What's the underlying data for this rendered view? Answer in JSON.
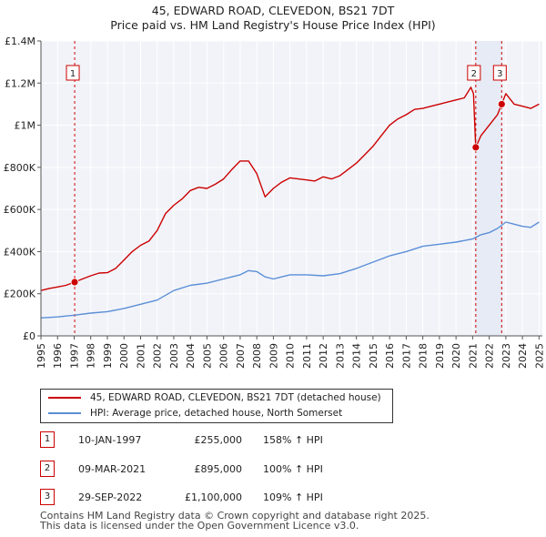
{
  "title": "45, EDWARD ROAD, CLEVEDON, BS21 7DT",
  "subtitle": "Price paid vs. HM Land Registry's House Price Index (HPI)",
  "colors": {
    "property": "#cc0000",
    "hpi": "#5b8fd6",
    "marker_line": "#cc0000",
    "grid": "#e6e6e6"
  },
  "chart_data": {
    "type": "line",
    "title": "45, EDWARD ROAD, CLEVEDON, BS21 7DT",
    "subtitle": "Price paid vs. HM Land Registry's House Price Index (HPI)",
    "xlim": [
      1995.0,
      2025.2
    ],
    "ylim": [
      0,
      1400000
    ],
    "y_ticks": [
      0,
      200000,
      400000,
      600000,
      800000,
      1000000,
      1200000,
      1400000
    ],
    "y_tick_labels": [
      "£0",
      "£200K",
      "£400K",
      "£600K",
      "£800K",
      "£1M",
      "£1.2M",
      "£1.4M"
    ],
    "x_ticks": [
      1995,
      1996,
      1997,
      1998,
      1999,
      2000,
      2001,
      2002,
      2003,
      2004,
      2005,
      2006,
      2007,
      2008,
      2009,
      2010,
      2011,
      2012,
      2013,
      2014,
      2015,
      2016,
      2017,
      2018,
      2019,
      2020,
      2021,
      2022,
      2023,
      2024,
      2025
    ],
    "x_tick_labels": [
      "1995",
      "1996",
      "1997",
      "1998",
      "1999",
      "2000",
      "2001",
      "2002",
      "2003",
      "2004",
      "2005",
      "2006",
      "2007",
      "2008",
      "2009",
      "2010",
      "2011",
      "2012",
      "2013",
      "2014",
      "2015",
      "2016",
      "2017",
      "2018",
      "2019",
      "2020",
      "2021",
      "2022",
      "2023",
      "2024",
      "2025"
    ],
    "grid": true,
    "series": [
      {
        "name": "45, EDWARD ROAD, CLEVEDON, BS21 7DT (detached house)",
        "color": "#cc0000",
        "x": [
          1995.0,
          1995.5,
          1996.0,
          1996.5,
          1997.03,
          1997.5,
          1998.0,
          1998.5,
          1999.0,
          1999.5,
          2000.0,
          2000.5,
          2001.0,
          2001.5,
          2002.0,
          2002.5,
          2003.0,
          2003.5,
          2004.0,
          2004.5,
          2005.0,
          2005.5,
          2006.0,
          2006.5,
          2007.0,
          2007.5,
          2008.0,
          2008.5,
          2009.0,
          2009.5,
          2010.0,
          2010.5,
          2011.0,
          2011.5,
          2012.0,
          2012.5,
          2013.0,
          2013.5,
          2014.0,
          2014.5,
          2015.0,
          2015.5,
          2016.0,
          2016.5,
          2017.0,
          2017.5,
          2018.0,
          2018.5,
          2019.0,
          2019.5,
          2020.0,
          2020.5,
          2020.9,
          2021.05,
          2021.19,
          2021.5,
          2022.0,
          2022.5,
          2022.75,
          2023.0,
          2023.5,
          2024.0,
          2024.5,
          2025.0
        ],
        "values": [
          215000,
          225000,
          232000,
          240000,
          255000,
          270000,
          285000,
          298000,
          300000,
          320000,
          360000,
          400000,
          430000,
          450000,
          500000,
          580000,
          620000,
          650000,
          690000,
          705000,
          700000,
          720000,
          745000,
          790000,
          830000,
          830000,
          770000,
          660000,
          700000,
          730000,
          750000,
          745000,
          740000,
          735000,
          755000,
          745000,
          760000,
          790000,
          820000,
          860000,
          900000,
          950000,
          1000000,
          1030000,
          1050000,
          1075000,
          1080000,
          1090000,
          1100000,
          1110000,
          1120000,
          1130000,
          1180000,
          1150000,
          895000,
          950000,
          1000000,
          1050000,
          1100000,
          1150000,
          1100000,
          1090000,
          1080000,
          1100000
        ]
      },
      {
        "name": "HPI: Average price, detached house, North Somerset",
        "color": "#5b8fd6",
        "x": [
          1995.0,
          1996.0,
          1997.0,
          1998.0,
          1999.0,
          2000.0,
          2001.0,
          2002.0,
          2003.0,
          2004.0,
          2005.0,
          2006.0,
          2007.0,
          2007.5,
          2008.0,
          2008.5,
          2009.0,
          2009.5,
          2010.0,
          2011.0,
          2012.0,
          2013.0,
          2014.0,
          2015.0,
          2016.0,
          2017.0,
          2018.0,
          2019.0,
          2020.0,
          2021.0,
          2021.5,
          2022.0,
          2022.5,
          2023.0,
          2023.5,
          2024.0,
          2024.5,
          2025.0
        ],
        "values": [
          85000,
          90000,
          98000,
          108000,
          115000,
          130000,
          150000,
          170000,
          215000,
          240000,
          250000,
          270000,
          290000,
          310000,
          305000,
          280000,
          270000,
          280000,
          290000,
          290000,
          285000,
          295000,
          320000,
          350000,
          380000,
          400000,
          425000,
          435000,
          445000,
          460000,
          480000,
          490000,
          510000,
          540000,
          530000,
          520000,
          515000,
          540000
        ]
      }
    ],
    "transactions": [
      {
        "label": "1",
        "x": 1997.03,
        "value": 255000,
        "date": "10-JAN-1997",
        "price": "£255,000",
        "hpi_change": "158% ↑ HPI"
      },
      {
        "label": "2",
        "x": 2021.19,
        "value": 895000,
        "date": "09-MAR-2021",
        "price": "£895,000",
        "hpi_change": "100% ↑ HPI"
      },
      {
        "label": "3",
        "x": 2022.75,
        "value": 1100000,
        "date": "29-SEP-2022",
        "price": "£1,100,000",
        "hpi_change": "109% ↑ HPI"
      }
    ]
  },
  "legend": [
    {
      "label": "45, EDWARD ROAD, CLEVEDON, BS21 7DT (detached house)"
    },
    {
      "label": "HPI: Average price, detached house, North Somerset"
    }
  ],
  "footer": [
    "Contains HM Land Registry data © Crown copyright and database right 2025.",
    "This data is licensed under the Open Government Licence v3.0."
  ]
}
